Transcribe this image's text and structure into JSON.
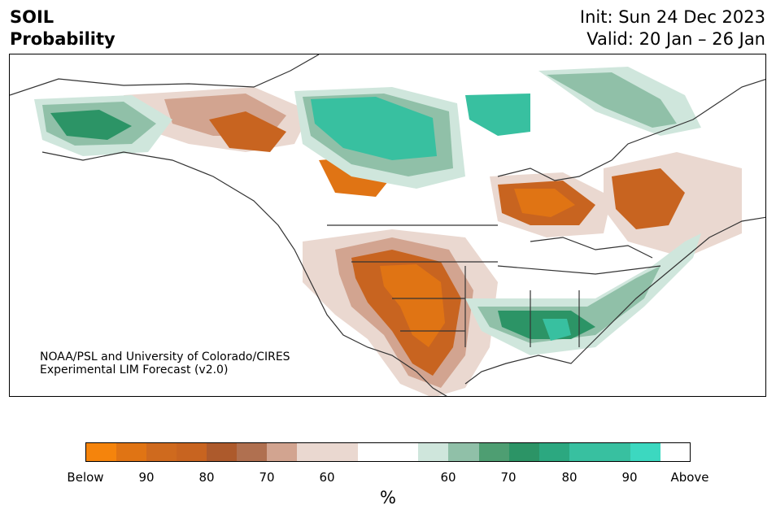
{
  "title": {
    "variable": "SOIL",
    "kind": "Probability",
    "init": "Init: Sun 24 Dec 2023",
    "valid": "Valid: 20 Jan – 26 Jan"
  },
  "credit": {
    "line1": "NOAA/PSL and University of Colorado/CIRES",
    "line2": "Experimental LIM Forecast (v2.0)"
  },
  "legend": {
    "unit": "%",
    "colors": [
      "#f5840c",
      "#e07414",
      "#cf6a1e",
      "#c86420",
      "#ad5a2c",
      "#b07050",
      "#d2a490",
      "#ead8d0",
      "#ffffff",
      "#cfe6dc",
      "#90c0a8",
      "#4e9e72",
      "#2c9466",
      "#2ca880",
      "#38c0a0",
      "#3cd8c0"
    ],
    "tick_labels": [
      "Below",
      "90",
      "80",
      "70",
      "60",
      "60",
      "70",
      "80",
      "90",
      "Above"
    ]
  },
  "map_colors": {
    "below_strong": "#e07414",
    "below_mid": "#c86420",
    "below_light": "#d2a490",
    "below_faint": "#ead8d0",
    "above_faint": "#cfe6dc",
    "above_light": "#90c0a8",
    "above_mid": "#2c9466",
    "above_strong": "#38c0a0",
    "coast": "#333333"
  }
}
